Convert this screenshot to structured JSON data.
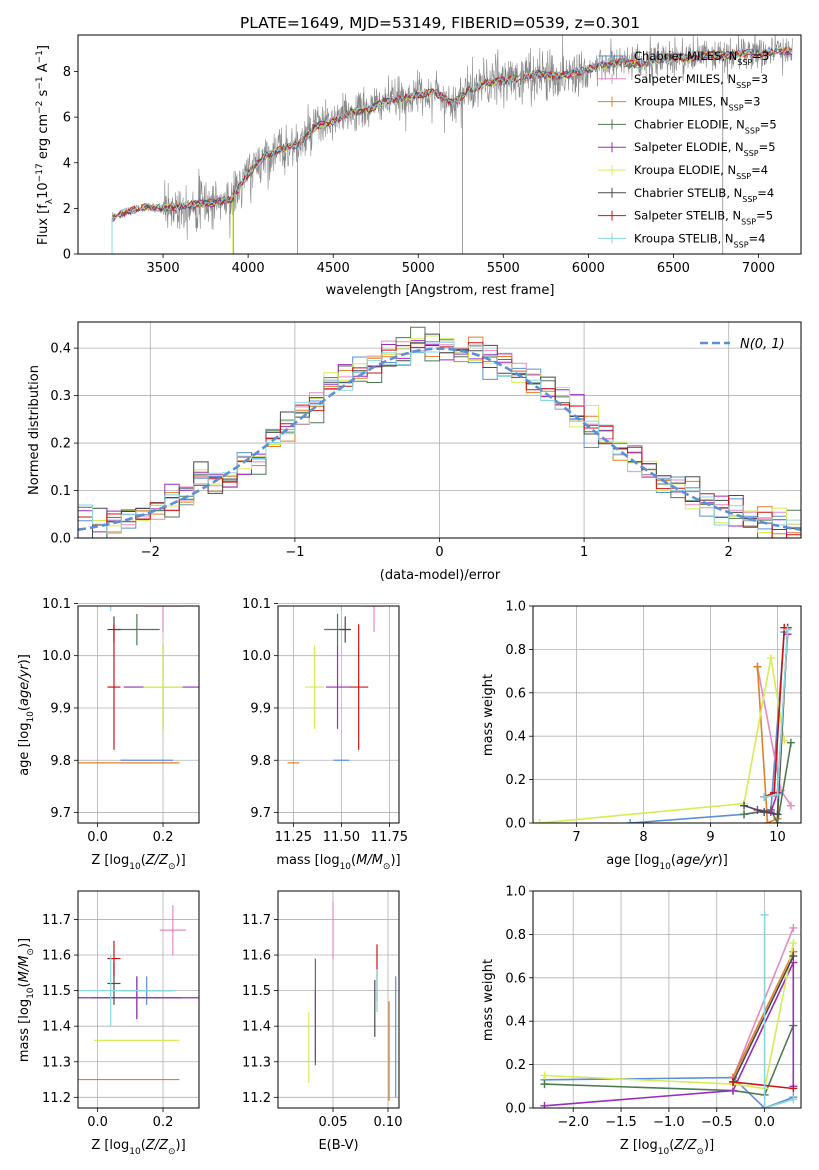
{
  "title": "PLATE=1649, MJD=53149, FIBERID=0539, z=0.301",
  "colors": {
    "Chabrier MILES": "#5b8fd6",
    "Salpeter MILES": "#e58ac0",
    "Kroupa MILES": "#e07f2a",
    "Chabrier ELODIE": "#4e7a52",
    "Salpeter ELODIE": "#9a2db8",
    "Kroupa ELODIE": "#d6ec55",
    "Chabrier STELIB": "#4a4a4a",
    "Salpeter STELIB": "#c81414",
    "Kroupa STELIB": "#88d6e0",
    "data": "#888888",
    "gaussian": "#5b8fd6"
  },
  "chart_data": [
    {
      "type": "line",
      "xlabel": "wavelength [Angstrom, rest frame]",
      "ylabel": "Flux [f_λ 10^-17 erg cm^-2 s^-1 A^-1]",
      "xlim": [
        3000,
        7250
      ],
      "ylim": [
        0,
        9.6
      ],
      "xticks": [
        3500,
        4000,
        4500,
        5000,
        5500,
        6000,
        6500,
        7000
      ],
      "yticks": [
        0,
        2,
        4,
        6,
        8
      ],
      "grid": false,
      "legend_position": "right",
      "legend": [
        {
          "label": "Chabrier MILES, N",
          "sub": "SSP",
          "suffix": "=3"
        },
        {
          "label": "Salpeter MILES, N",
          "sub": "SSP",
          "suffix": "=3"
        },
        {
          "label": "Kroupa MILES, N",
          "sub": "SSP",
          "suffix": "=3"
        },
        {
          "label": "Chabrier ELODIE, N",
          "sub": "SSP",
          "suffix": "=5"
        },
        {
          "label": "Salpeter ELODIE, N",
          "sub": "SSP",
          "suffix": "=5"
        },
        {
          "label": "Kroupa ELODIE, N",
          "sub": "SSP",
          "suffix": "=4"
        },
        {
          "label": "Chabrier STELIB, N",
          "sub": "SSP",
          "suffix": "=4"
        },
        {
          "label": "Salpeter STELIB, N",
          "sub": "SSP",
          "suffix": "=5"
        },
        {
          "label": "Kroupa STELIB, N",
          "sub": "SSP",
          "suffix": "=4"
        }
      ],
      "model_continuum": {
        "x": [
          3200,
          3300,
          3400,
          3500,
          3600,
          3700,
          3800,
          3900,
          4000,
          4100,
          4200,
          4300,
          4400,
          4500,
          4600,
          4700,
          4800,
          4900,
          5000,
          5100,
          5200,
          5300,
          5400,
          5500,
          5600,
          5700,
          5800,
          5900,
          6000,
          6100,
          6200,
          6300,
          6400,
          6500,
          6600,
          6700,
          6800,
          6900,
          7000,
          7100,
          7200
        ],
        "y": [
          1.6,
          1.9,
          2.05,
          2.0,
          2.1,
          2.2,
          2.25,
          2.4,
          3.5,
          4.3,
          4.6,
          4.8,
          5.6,
          5.8,
          6.2,
          6.3,
          6.7,
          6.8,
          7.0,
          7.1,
          6.6,
          7.2,
          7.5,
          7.6,
          7.7,
          7.9,
          7.8,
          7.9,
          8.1,
          8.3,
          8.4,
          8.3,
          8.5,
          8.6,
          8.6,
          8.7,
          8.7,
          8.8,
          8.8,
          8.9,
          8.9
        ]
      }
    },
    {
      "type": "histogram",
      "xlabel": "(data-model)/error",
      "ylabel": "Normed distribution",
      "xlim": [
        -2.5,
        2.5
      ],
      "ylim": [
        0,
        0.455
      ],
      "xticks": [
        -2,
        -1,
        0,
        1,
        2
      ],
      "yticks": [
        0.0,
        0.1,
        0.2,
        0.3,
        0.4
      ],
      "grid": true,
      "legend_position": "top-right",
      "legend": [
        {
          "label": "N(0,1)",
          "style": "dashed"
        }
      ],
      "bin_width": 0.1,
      "bin_start": -2.5,
      "gaussian": {
        "mean": 0,
        "sigma": 1
      }
    },
    {
      "type": "scatter",
      "errorbars": true,
      "xlabel": "Z [log10(Z/Z_sun)]",
      "ylabel": "age  [log10(age/yr)]",
      "xlim": [
        -0.06,
        0.31
      ],
      "ylim": [
        9.68,
        10.095
      ],
      "xticks": [
        0.0,
        0.2
      ],
      "yticks": [
        9.7,
        9.8,
        9.9,
        10.0,
        10.1
      ],
      "grid": true,
      "points": [
        {
          "series": "Chabrier MILES",
          "x": 0.15,
          "xerr": 0.08,
          "y": 9.8,
          "yerr": 0.0
        },
        {
          "series": "Salpeter MILES",
          "x": 0.2,
          "xerr": 0.06,
          "y": 10.095,
          "yerr": 0.05
        },
        {
          "series": "Kroupa MILES",
          "x": 0.09,
          "xerr": 0.16,
          "y": 9.795,
          "yerr": 0.0
        },
        {
          "series": "Chabrier ELODIE",
          "x": 0.12,
          "xerr": 0.07,
          "y": 10.05,
          "yerr": 0.03
        },
        {
          "series": "Salpeter ELODIE",
          "x": 0.2,
          "xerr": 0.12,
          "y": 9.94,
          "yerr": 0.08
        },
        {
          "series": "Kroupa ELODIE",
          "x": 0.2,
          "xerr": 0.06,
          "y": 9.94,
          "yerr": 0.08
        },
        {
          "series": "Chabrier STELIB",
          "x": 0.05,
          "xerr": 0.02,
          "y": 10.05,
          "yerr": 0.025
        },
        {
          "series": "Salpeter STELIB",
          "x": 0.05,
          "xerr": 0.02,
          "y": 9.94,
          "yerr": 0.12
        },
        {
          "series": "Kroupa STELIB",
          "x": 0.04,
          "xerr": 0.2,
          "y": 10.115,
          "yerr": 0.03
        }
      ]
    },
    {
      "type": "scatter",
      "errorbars": true,
      "xlabel": "mass [log10(M/M_sun)]",
      "ylabel": "",
      "xlim": [
        11.17,
        11.8
      ],
      "ylim": [
        9.68,
        10.095
      ],
      "xticks": [
        11.25,
        11.5,
        11.75
      ],
      "yticks": [
        9.7,
        9.8,
        9.9,
        10.0,
        10.1
      ],
      "grid": true,
      "points": [
        {
          "series": "Chabrier MILES",
          "x": 11.5,
          "xerr": 0.04,
          "y": 9.8,
          "yerr": 0.0
        },
        {
          "series": "Salpeter MILES",
          "x": 11.67,
          "xerr": 0.05,
          "y": 10.095,
          "yerr": 0.05
        },
        {
          "series": "Kroupa MILES",
          "x": 11.25,
          "xerr": 0.03,
          "y": 9.795,
          "yerr": 0.0
        },
        {
          "series": "Chabrier ELODIE",
          "x": 11.48,
          "xerr": 0.07,
          "y": 10.05,
          "yerr": 0.03
        },
        {
          "series": "Salpeter ELODIE",
          "x": 11.48,
          "xerr": 0.06,
          "y": 9.94,
          "yerr": 0.08
        },
        {
          "series": "Kroupa ELODIE",
          "x": 11.36,
          "xerr": 0.05,
          "y": 9.94,
          "yerr": 0.08
        },
        {
          "series": "Chabrier STELIB",
          "x": 11.52,
          "xerr": 0.03,
          "y": 10.05,
          "yerr": 0.025
        },
        {
          "series": "Salpeter STELIB",
          "x": 11.59,
          "xerr": 0.05,
          "y": 9.94,
          "yerr": 0.12
        },
        {
          "series": "Kroupa STELIB",
          "x": 11.5,
          "xerr": 0.1,
          "y": 10.115,
          "yerr": 0.03
        }
      ]
    },
    {
      "type": "line",
      "xlabel": "age  [log10(age/yr)]",
      "ylabel": "mass weight",
      "xlim": [
        6.35,
        10.35
      ],
      "ylim": [
        0,
        1.0
      ],
      "xticks": [
        7,
        8,
        9,
        10
      ],
      "yticks": [
        0.0,
        0.2,
        0.4,
        0.6,
        0.8,
        1.0
      ],
      "grid": true,
      "series": [
        {
          "name": "Chabrier MILES",
          "x": [
            7.8,
            9.5,
            9.9,
            10.1
          ],
          "y": [
            0.0,
            0.04,
            0.06,
            0.88
          ]
        },
        {
          "name": "Salpeter MILES",
          "x": [
            9.7,
            10.05,
            10.2
          ],
          "y": [
            0.72,
            0.15,
            0.08
          ]
        },
        {
          "name": "Kroupa MILES",
          "x": [
            9.7,
            9.85,
            10.0,
            10.15
          ],
          "y": [
            0.72,
            0.0,
            0.02,
            0.9
          ]
        },
        {
          "name": "Chabrier ELODIE",
          "x": [
            9.5,
            9.9,
            10.0,
            10.2
          ],
          "y": [
            0.04,
            0.06,
            0.0,
            0.37
          ]
        },
        {
          "name": "Salpeter ELODIE",
          "x": [
            9.7,
            9.9,
            10.0,
            10.15
          ],
          "y": [
            0.06,
            0.05,
            0.14,
            0.87
          ]
        },
        {
          "name": "Kroupa ELODIE",
          "x": [
            6.45,
            9.5,
            9.9,
            10.1
          ],
          "y": [
            0.0,
            0.09,
            0.76,
            0.38
          ]
        },
        {
          "name": "Chabrier STELIB",
          "x": [
            9.5,
            9.8,
            10.0,
            10.15
          ],
          "y": [
            0.08,
            0.05,
            0.04,
            0.9
          ]
        },
        {
          "name": "Salpeter STELIB",
          "x": [
            9.8,
            9.95,
            10.1
          ],
          "y": [
            0.12,
            0.14,
            0.9
          ]
        },
        {
          "name": "Kroupa STELIB",
          "x": [
            9.8,
            10.0,
            10.15
          ],
          "y": [
            0.12,
            0.13,
            0.89
          ]
        }
      ]
    },
    {
      "type": "scatter",
      "errorbars": true,
      "xlabel": "Z [log10(Z/Z_sun)]",
      "ylabel": "mass [log10(M/M_sun)]",
      "xlim": [
        -0.06,
        0.31
      ],
      "ylim": [
        11.17,
        11.78
      ],
      "xticks": [
        0.0,
        0.2
      ],
      "yticks": [
        11.2,
        11.3,
        11.4,
        11.5,
        11.6,
        11.7
      ],
      "grid": true,
      "points": [
        {
          "series": "Chabrier MILES",
          "x": 0.15,
          "xerr": 0.08,
          "y": 11.5,
          "yerr": 0.04
        },
        {
          "series": "Salpeter MILES",
          "x": 0.23,
          "xerr": 0.04,
          "y": 11.67,
          "yerr": 0.07
        },
        {
          "series": "Kroupa MILES",
          "x": 0.09,
          "xerr": 0.16,
          "y": 11.25,
          "yerr": 0.0
        },
        {
          "series": "Chabrier ELODIE",
          "x": 0.12,
          "xerr": 0.14,
          "y": 11.48,
          "yerr": 0.06
        },
        {
          "series": "Salpeter ELODIE",
          "x": 0.12,
          "xerr": 0.2,
          "y": 11.48,
          "yerr": 0.06
        },
        {
          "series": "Kroupa ELODIE",
          "x": 0.12,
          "xerr": 0.13,
          "y": 11.36,
          "yerr": 0.0
        },
        {
          "series": "Chabrier STELIB",
          "x": 0.05,
          "xerr": 0.02,
          "y": 11.52,
          "yerr": 0.06
        },
        {
          "series": "Salpeter STELIB",
          "x": 0.05,
          "xerr": 0.02,
          "y": 11.59,
          "yerr": 0.05
        },
        {
          "series": "Kroupa STELIB",
          "x": 0.04,
          "xerr": 0.2,
          "y": 11.5,
          "yerr": 0.1
        }
      ]
    },
    {
      "type": "scatter",
      "errorbars": true,
      "xlabel": "E(B-V)",
      "ylabel": "",
      "xlim": [
        0.0,
        0.11
      ],
      "ylim": [
        11.17,
        11.78
      ],
      "xticks": [
        0.05,
        0.1
      ],
      "yticks": [
        11.2,
        11.3,
        11.4,
        11.5,
        11.6,
        11.7
      ],
      "grid": true,
      "points": [
        {
          "series": "Chabrier MILES",
          "x": 0.107,
          "xerr": 0.0,
          "y": 11.37,
          "yerr": 0.17
        },
        {
          "series": "Salpeter MILES",
          "x": 0.05,
          "xerr": 0.0,
          "y": 11.67,
          "yerr": 0.08
        },
        {
          "series": "Kroupa MILES",
          "x": 0.101,
          "xerr": 0.0,
          "y": 11.33,
          "yerr": 0.14
        },
        {
          "series": "Chabrier ELODIE",
          "x": 0.034,
          "xerr": 0.0,
          "y": 11.44,
          "yerr": 0.15
        },
        {
          "series": "Salpeter ELODIE",
          "x": 0.034,
          "xerr": 0.0,
          "y": 11.4,
          "yerr": 0.1
        },
        {
          "series": "Kroupa ELODIE",
          "x": 0.028,
          "xerr": 0.0,
          "y": 11.34,
          "yerr": 0.1
        },
        {
          "series": "Chabrier STELIB",
          "x": 0.088,
          "xerr": 0.0,
          "y": 11.45,
          "yerr": 0.08
        },
        {
          "series": "Salpeter STELIB",
          "x": 0.09,
          "xerr": 0.0,
          "y": 11.55,
          "yerr": 0.08
        },
        {
          "series": "Kroupa STELIB",
          "x": 0.09,
          "xerr": 0.0,
          "y": 11.5,
          "yerr": 0.06
        }
      ]
    },
    {
      "type": "line",
      "xlabel": "Z [log10(Z/Z_sun)]",
      "ylabel": "mass weight",
      "xlim": [
        -2.42,
        0.38
      ],
      "ylim": [
        0,
        1.0
      ],
      "xticks": [
        -2.0,
        -1.5,
        -1.0,
        -0.5,
        0.0
      ],
      "yticks": [
        0.0,
        0.2,
        0.4,
        0.6,
        0.8,
        1.0
      ],
      "grid": true,
      "series": [
        {
          "name": "Chabrier MILES",
          "x": [
            -2.3,
            -0.33,
            0.0,
            0.3
          ],
          "y": [
            0.13,
            0.14,
            0.0,
            0.05
          ]
        },
        {
          "name": "Salpeter MILES",
          "x": [
            -0.33,
            0.3
          ],
          "y": [
            0.14,
            0.83
          ]
        },
        {
          "name": "Kroupa MILES",
          "x": [
            -0.33,
            0.3
          ],
          "y": [
            0.14,
            0.72
          ]
        },
        {
          "name": "Chabrier ELODIE",
          "x": [
            -2.3,
            -0.33,
            0.0,
            0.3
          ],
          "y": [
            0.11,
            0.08,
            0.06,
            0.38
          ]
        },
        {
          "name": "Salpeter ELODIE",
          "x": [
            -2.3,
            -0.33,
            0.3,
            0.3
          ],
          "y": [
            0.01,
            0.08,
            0.67,
            0.1
          ]
        },
        {
          "name": "Kroupa ELODIE",
          "x": [
            -2.3,
            -0.33,
            0.0,
            0.3
          ],
          "y": [
            0.15,
            0.11,
            0.09,
            0.76
          ]
        },
        {
          "name": "Chabrier STELIB",
          "x": [
            -0.33,
            0.3
          ],
          "y": [
            0.12,
            0.7
          ]
        },
        {
          "name": "Salpeter STELIB",
          "x": [
            -0.33,
            0.3
          ],
          "y": [
            0.12,
            0.09
          ]
        },
        {
          "name": "Kroupa STELIB",
          "x": [
            0.0,
            0.0,
            0.3
          ],
          "y": [
            0.89,
            0.0,
            0.04
          ]
        }
      ]
    }
  ]
}
